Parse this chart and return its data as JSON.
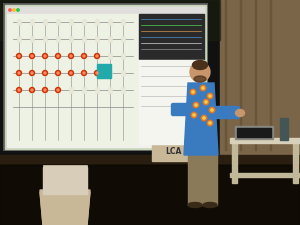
{
  "bg_color": "#111111",
  "screen_bg": "#c8d4b8",
  "screen_bright": "#dce8c8",
  "circuit_bg": "#e8edd8",
  "wall_right_color": "#7a6548",
  "wall_right_dark": "#5a4a32",
  "floor_color": "#1a1208",
  "floor_mid": "#3a2a18",
  "person_shirt": "#3a7abf",
  "person_skin": "#c8956c",
  "person_hair": "#4a3018",
  "person_pants": "#8a7a5a",
  "table_top": "#d8d0b8",
  "table_leg": "#c0b898",
  "lca_bg": "#c8b898",
  "chair_color": "#c8b898",
  "circuit_line": "#444444",
  "led_red": "#cc3300",
  "led_teal": "#22aaaa",
  "figsize": [
    3.0,
    2.25
  ],
  "dpi": 100
}
